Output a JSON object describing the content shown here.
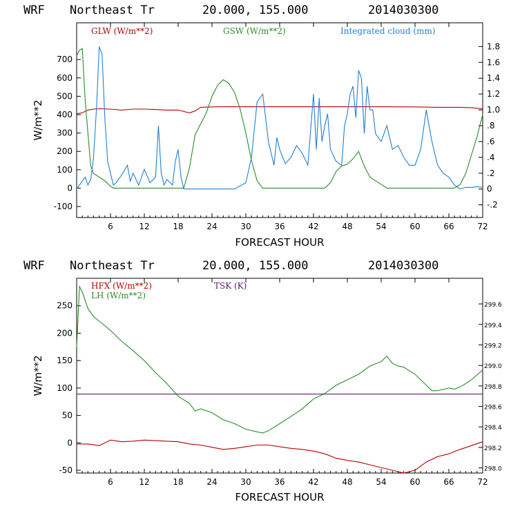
{
  "charts": [
    {
      "header": {
        "model": "WRF",
        "location": "Northeast Tr",
        "coords": "20.000, 155.000",
        "init": "2014030300"
      },
      "xlabel": "FORECAST HOUR",
      "ylabel_left": "W/m**2",
      "legend": [
        {
          "text": "GLW (W/m**2)",
          "color": "#b30000"
        },
        {
          "text": "GSW (W/m**2)",
          "color": "#2a8a2a"
        },
        {
          "text": "Integrated cloud (mm)",
          "color": "#1f7fd6"
        }
      ]
    },
    {
      "header": {
        "model": "WRF",
        "location": "Northeast Tr",
        "coords": "20.000, 155.000",
        "init": "2014030300"
      },
      "xlabel": "FORECAST HOUR",
      "ylabel_left": "W/m**2",
      "legend": [
        {
          "text": "HFX (W/m**2)",
          "color": "#b30000"
        },
        {
          "text": "LH  (W/m**2)",
          "color": "#2a8a2a"
        },
        {
          "text": "TSK (K)",
          "color": "#5a1a6a"
        }
      ]
    }
  ],
  "chart_data": [
    {
      "type": "line",
      "xlim": [
        0,
        72
      ],
      "xticks": [
        6,
        12,
        18,
        24,
        30,
        36,
        42,
        48,
        54,
        60,
        66,
        72
      ],
      "ylim_left": [
        -160,
        900
      ],
      "yticks_left": [
        -100,
        0,
        100,
        200,
        300,
        400,
        500,
        600,
        700
      ],
      "ylim_right": [
        -0.36,
        2.1
      ],
      "yticks_right": [
        "-.2",
        "0",
        ".2",
        ".4",
        ".6",
        ".8",
        "1.0",
        "1.2",
        "1.4",
        "1.6",
        "1.8"
      ],
      "yticks_right_values": [
        -0.2,
        0,
        0.2,
        0.4,
        0.6,
        0.8,
        1.0,
        1.2,
        1.4,
        1.6,
        1.8
      ],
      "series": [
        {
          "name": "GLW (W/m**2)",
          "axis": "left",
          "color": "#b30000",
          "x": [
            0,
            1,
            2,
            3,
            4,
            6,
            8,
            10,
            12,
            14,
            16,
            18,
            20,
            21,
            22,
            24,
            26,
            30,
            36,
            42,
            48,
            54,
            60,
            64,
            66,
            68,
            70,
            72
          ],
          "y": [
            405,
            410,
            425,
            430,
            432,
            430,
            425,
            430,
            430,
            428,
            425,
            425,
            410,
            420,
            440,
            442,
            443,
            443,
            443,
            443,
            443,
            443,
            442,
            440,
            440,
            440,
            438,
            432
          ]
        },
        {
          "name": "GSW (W/m**2)",
          "axis": "left",
          "color": "#2a8a2a",
          "x": [
            0,
            0.5,
            1,
            1.5,
            2,
            2.5,
            3,
            4,
            5,
            6,
            6.5,
            7,
            19,
            20,
            21,
            22,
            23,
            24,
            25,
            26,
            27,
            28,
            29,
            30,
            31,
            32,
            33,
            34,
            35,
            44,
            45,
            46,
            47,
            48,
            49,
            50,
            51,
            52,
            53,
            54,
            55,
            67,
            68,
            69,
            70,
            71,
            72
          ],
          "y": [
            720,
            750,
            760,
            480,
            300,
            120,
            80,
            60,
            40,
            10,
            0,
            0,
            0,
            110,
            290,
            350,
            410,
            500,
            560,
            590,
            570,
            520,
            430,
            300,
            150,
            40,
            0,
            0,
            0,
            0,
            30,
            90,
            120,
            130,
            160,
            200,
            120,
            60,
            40,
            20,
            0,
            0,
            20,
            80,
            180,
            280,
            400
          ]
        },
        {
          "name": "Integrated cloud (mm)",
          "axis": "right",
          "color": "#1f7fd6",
          "x": [
            0,
            1,
            1.5,
            2,
            2.5,
            3,
            3.5,
            4,
            4.5,
            5,
            5.5,
            6,
            6.5,
            7,
            8,
            9,
            9.5,
            10,
            11,
            12,
            13,
            14,
            14.5,
            15,
            15.5,
            16,
            17,
            17.5,
            18,
            18.5,
            19,
            20,
            22,
            24,
            26,
            28,
            30,
            31,
            32,
            33,
            34,
            35,
            35.5,
            36,
            37,
            38,
            39,
            40,
            41,
            42,
            42.5,
            43,
            43.5,
            44,
            44.5,
            45,
            46,
            47,
            47.5,
            48,
            48.5,
            49,
            49.5,
            50,
            50.5,
            51,
            51.5,
            52,
            52.5,
            53,
            54,
            55,
            56,
            57,
            58,
            59,
            60,
            61,
            62,
            63,
            64,
            65,
            66,
            67,
            68,
            69,
            70,
            71,
            72
          ],
          "y": [
            0,
            0.1,
            0.15,
            0.05,
            0.12,
            0.4,
            1.0,
            1.8,
            1.7,
            0.9,
            0.35,
            0.2,
            0.05,
            0.08,
            0.18,
            0.3,
            0.1,
            0.2,
            0.05,
            0.25,
            0.08,
            0.15,
            0.8,
            0.2,
            0.05,
            0.12,
            0.05,
            0.35,
            0.5,
            0.15,
            0,
            0,
            0,
            0,
            0,
            0,
            0.08,
            0.4,
            1.1,
            1.2,
            0.6,
            0.3,
            0.65,
            0.5,
            0.32,
            0.4,
            0.55,
            0.45,
            0.3,
            1.2,
            0.5,
            1.15,
            0.6,
            0.8,
            0.95,
            0.5,
            0.35,
            0.3,
            0.8,
            0.95,
            1.2,
            1.3,
            0.9,
            1.5,
            1.4,
            0.7,
            1.3,
            1.0,
            1.0,
            0.7,
            0.6,
            0.8,
            0.5,
            0.55,
            0.4,
            0.3,
            0.3,
            0.5,
            1.0,
            0.6,
            0.3,
            0.2,
            0.15,
            0.05,
            0,
            0.02,
            0.02,
            0.03,
            0.02
          ]
        }
      ]
    },
    {
      "type": "line",
      "xlim": [
        0,
        72
      ],
      "xticks": [
        6,
        12,
        18,
        24,
        30,
        36,
        42,
        48,
        54,
        60,
        66,
        72
      ],
      "ylim_left": [
        -55,
        300
      ],
      "yticks_left": [
        -50,
        0,
        50,
        100,
        150,
        200,
        250
      ],
      "ylim_right": [
        297.95,
        299.85
      ],
      "yticks_right": [
        "298.0",
        "298.2",
        "298.4",
        "298.6",
        "298.8",
        "299.0",
        "299.2",
        "299.4",
        "299.6"
      ],
      "yticks_right_values": [
        298.0,
        298.2,
        298.4,
        298.6,
        298.8,
        299.0,
        299.2,
        299.4,
        299.6
      ],
      "series": [
        {
          "name": "HFX (W/m**2)",
          "axis": "left",
          "color": "#b30000",
          "x": [
            0,
            2,
            4,
            6,
            8,
            10,
            12,
            14,
            16,
            18,
            20,
            22,
            24,
            26,
            28,
            30,
            32,
            34,
            36,
            38,
            40,
            42,
            44,
            46,
            48,
            50,
            52,
            54,
            56,
            58,
            60,
            62,
            64,
            66,
            68,
            70,
            72
          ],
          "y": [
            -2,
            -2,
            -5,
            5,
            2,
            3,
            5,
            4,
            3,
            2,
            -2,
            -4,
            -8,
            -12,
            -10,
            -7,
            -4,
            -4,
            -7,
            -10,
            -12,
            -15,
            -20,
            -28,
            -32,
            -35,
            -40,
            -45,
            -50,
            -55,
            -50,
            -35,
            -25,
            -20,
            -12,
            -5,
            2
          ]
        },
        {
          "name": "LH  (W/m**2)",
          "axis": "left",
          "color": "#2a8a2a",
          "x": [
            0,
            0.5,
            1,
            2,
            3,
            4,
            6,
            8,
            10,
            12,
            14,
            16,
            18,
            20,
            21,
            22,
            24,
            26,
            28,
            30,
            32,
            33,
            34,
            36,
            38,
            40,
            42,
            44,
            46,
            48,
            50,
            52,
            54,
            55,
            56,
            57,
            58,
            60,
            62,
            63,
            64,
            66,
            67,
            68,
            69,
            70,
            72
          ],
          "y": [
            175,
            285,
            275,
            245,
            230,
            222,
            205,
            185,
            168,
            150,
            128,
            108,
            85,
            72,
            58,
            62,
            55,
            42,
            35,
            25,
            20,
            18,
            22,
            35,
            48,
            62,
            80,
            90,
            105,
            115,
            125,
            140,
            148,
            158,
            145,
            140,
            138,
            125,
            105,
            95,
            95,
            100,
            98,
            102,
            108,
            115,
            133
          ]
        },
        {
          "name": "TSK (K)",
          "axis": "right",
          "color": "#5a1a6a",
          "x": [
            0,
            72
          ],
          "y": [
            298.72,
            298.72
          ]
        }
      ]
    }
  ]
}
